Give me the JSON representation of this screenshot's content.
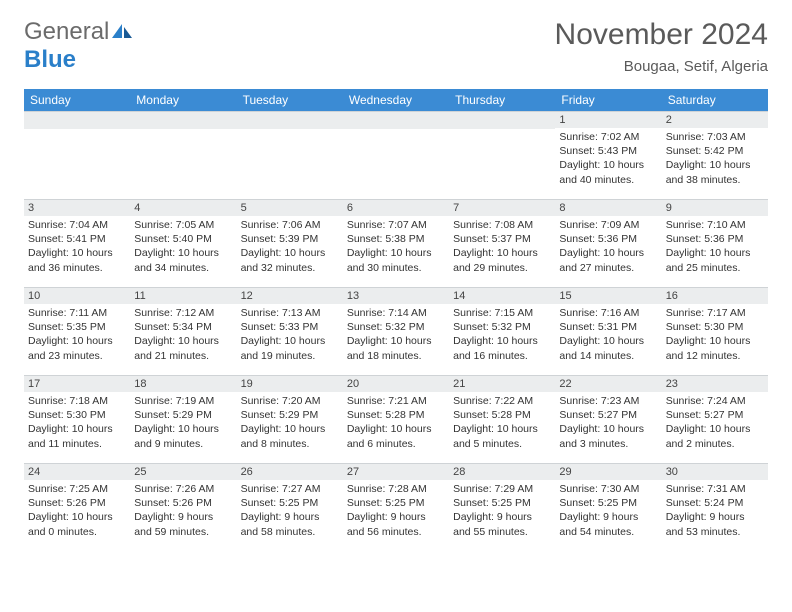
{
  "logo": {
    "general": "General",
    "blue": "Blue"
  },
  "header": {
    "month_title": "November 2024",
    "location": "Bougaa, Setif, Algeria"
  },
  "colors": {
    "header_bg": "#3b8bd4",
    "header_fg": "#ffffff",
    "daynum_bg": "#ebedee",
    "border": "#cfd3d6",
    "logo_gray": "#6b6b6b",
    "logo_blue": "#2a7fc9",
    "title_color": "#5a5a5a"
  },
  "day_names": [
    "Sunday",
    "Monday",
    "Tuesday",
    "Wednesday",
    "Thursday",
    "Friday",
    "Saturday"
  ],
  "weeks": [
    [
      {
        "blank": true
      },
      {
        "blank": true
      },
      {
        "blank": true
      },
      {
        "blank": true
      },
      {
        "blank": true
      },
      {
        "num": "1",
        "sunrise": "Sunrise: 7:02 AM",
        "sunset": "Sunset: 5:43 PM",
        "daylight": "Daylight: 10 hours and 40 minutes."
      },
      {
        "num": "2",
        "sunrise": "Sunrise: 7:03 AM",
        "sunset": "Sunset: 5:42 PM",
        "daylight": "Daylight: 10 hours and 38 minutes."
      }
    ],
    [
      {
        "num": "3",
        "sunrise": "Sunrise: 7:04 AM",
        "sunset": "Sunset: 5:41 PM",
        "daylight": "Daylight: 10 hours and 36 minutes."
      },
      {
        "num": "4",
        "sunrise": "Sunrise: 7:05 AM",
        "sunset": "Sunset: 5:40 PM",
        "daylight": "Daylight: 10 hours and 34 minutes."
      },
      {
        "num": "5",
        "sunrise": "Sunrise: 7:06 AM",
        "sunset": "Sunset: 5:39 PM",
        "daylight": "Daylight: 10 hours and 32 minutes."
      },
      {
        "num": "6",
        "sunrise": "Sunrise: 7:07 AM",
        "sunset": "Sunset: 5:38 PM",
        "daylight": "Daylight: 10 hours and 30 minutes."
      },
      {
        "num": "7",
        "sunrise": "Sunrise: 7:08 AM",
        "sunset": "Sunset: 5:37 PM",
        "daylight": "Daylight: 10 hours and 29 minutes."
      },
      {
        "num": "8",
        "sunrise": "Sunrise: 7:09 AM",
        "sunset": "Sunset: 5:36 PM",
        "daylight": "Daylight: 10 hours and 27 minutes."
      },
      {
        "num": "9",
        "sunrise": "Sunrise: 7:10 AM",
        "sunset": "Sunset: 5:36 PM",
        "daylight": "Daylight: 10 hours and 25 minutes."
      }
    ],
    [
      {
        "num": "10",
        "sunrise": "Sunrise: 7:11 AM",
        "sunset": "Sunset: 5:35 PM",
        "daylight": "Daylight: 10 hours and 23 minutes."
      },
      {
        "num": "11",
        "sunrise": "Sunrise: 7:12 AM",
        "sunset": "Sunset: 5:34 PM",
        "daylight": "Daylight: 10 hours and 21 minutes."
      },
      {
        "num": "12",
        "sunrise": "Sunrise: 7:13 AM",
        "sunset": "Sunset: 5:33 PM",
        "daylight": "Daylight: 10 hours and 19 minutes."
      },
      {
        "num": "13",
        "sunrise": "Sunrise: 7:14 AM",
        "sunset": "Sunset: 5:32 PM",
        "daylight": "Daylight: 10 hours and 18 minutes."
      },
      {
        "num": "14",
        "sunrise": "Sunrise: 7:15 AM",
        "sunset": "Sunset: 5:32 PM",
        "daylight": "Daylight: 10 hours and 16 minutes."
      },
      {
        "num": "15",
        "sunrise": "Sunrise: 7:16 AM",
        "sunset": "Sunset: 5:31 PM",
        "daylight": "Daylight: 10 hours and 14 minutes."
      },
      {
        "num": "16",
        "sunrise": "Sunrise: 7:17 AM",
        "sunset": "Sunset: 5:30 PM",
        "daylight": "Daylight: 10 hours and 12 minutes."
      }
    ],
    [
      {
        "num": "17",
        "sunrise": "Sunrise: 7:18 AM",
        "sunset": "Sunset: 5:30 PM",
        "daylight": "Daylight: 10 hours and 11 minutes."
      },
      {
        "num": "18",
        "sunrise": "Sunrise: 7:19 AM",
        "sunset": "Sunset: 5:29 PM",
        "daylight": "Daylight: 10 hours and 9 minutes."
      },
      {
        "num": "19",
        "sunrise": "Sunrise: 7:20 AM",
        "sunset": "Sunset: 5:29 PM",
        "daylight": "Daylight: 10 hours and 8 minutes."
      },
      {
        "num": "20",
        "sunrise": "Sunrise: 7:21 AM",
        "sunset": "Sunset: 5:28 PM",
        "daylight": "Daylight: 10 hours and 6 minutes."
      },
      {
        "num": "21",
        "sunrise": "Sunrise: 7:22 AM",
        "sunset": "Sunset: 5:28 PM",
        "daylight": "Daylight: 10 hours and 5 minutes."
      },
      {
        "num": "22",
        "sunrise": "Sunrise: 7:23 AM",
        "sunset": "Sunset: 5:27 PM",
        "daylight": "Daylight: 10 hours and 3 minutes."
      },
      {
        "num": "23",
        "sunrise": "Sunrise: 7:24 AM",
        "sunset": "Sunset: 5:27 PM",
        "daylight": "Daylight: 10 hours and 2 minutes."
      }
    ],
    [
      {
        "num": "24",
        "sunrise": "Sunrise: 7:25 AM",
        "sunset": "Sunset: 5:26 PM",
        "daylight": "Daylight: 10 hours and 0 minutes."
      },
      {
        "num": "25",
        "sunrise": "Sunrise: 7:26 AM",
        "sunset": "Sunset: 5:26 PM",
        "daylight": "Daylight: 9 hours and 59 minutes."
      },
      {
        "num": "26",
        "sunrise": "Sunrise: 7:27 AM",
        "sunset": "Sunset: 5:25 PM",
        "daylight": "Daylight: 9 hours and 58 minutes."
      },
      {
        "num": "27",
        "sunrise": "Sunrise: 7:28 AM",
        "sunset": "Sunset: 5:25 PM",
        "daylight": "Daylight: 9 hours and 56 minutes."
      },
      {
        "num": "28",
        "sunrise": "Sunrise: 7:29 AM",
        "sunset": "Sunset: 5:25 PM",
        "daylight": "Daylight: 9 hours and 55 minutes."
      },
      {
        "num": "29",
        "sunrise": "Sunrise: 7:30 AM",
        "sunset": "Sunset: 5:25 PM",
        "daylight": "Daylight: 9 hours and 54 minutes."
      },
      {
        "num": "30",
        "sunrise": "Sunrise: 7:31 AM",
        "sunset": "Sunset: 5:24 PM",
        "daylight": "Daylight: 9 hours and 53 minutes."
      }
    ]
  ]
}
